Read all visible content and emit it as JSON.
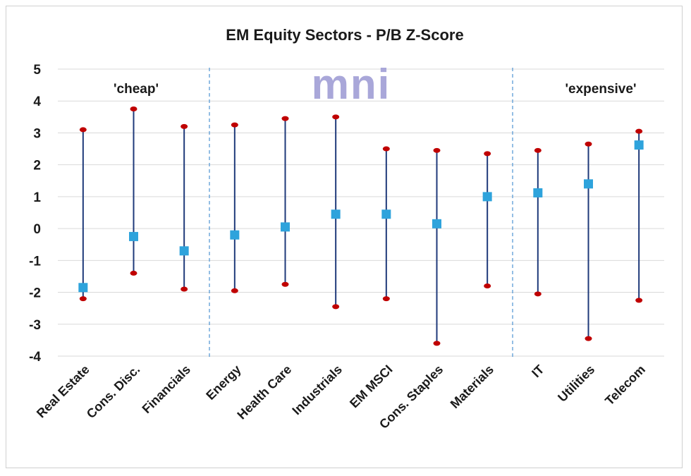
{
  "chart_data": {
    "type": "scatter",
    "title": "EM Equity Sectors - P/B Z-Score",
    "xlabel": "",
    "ylabel": "",
    "ylim": [
      -4,
      5
    ],
    "yticks": [
      "5",
      "4",
      "3",
      "2",
      "1",
      "0",
      "-1",
      "-2",
      "-3",
      "-4"
    ],
    "grid": true,
    "categories": [
      "Real Estate",
      "Cons. Disc.",
      "Financials",
      "Energy",
      "Health Care",
      "Industrials",
      "EM MSCI",
      "Cons. Staples",
      "Materials",
      "IT",
      "Utilities",
      "Telecom"
    ],
    "series": [
      {
        "values": [
          3.1,
          3.75,
          3.2,
          3.25,
          3.45,
          3.5,
          2.5,
          2.45,
          2.35,
          2.45,
          2.65,
          3.05
        ]
      },
      {
        "values": [
          -2.2,
          -1.4,
          -1.9,
          -1.95,
          -1.75,
          -2.45,
          -2.2,
          -3.6,
          -1.8,
          -2.05,
          -3.45,
          -2.25
        ]
      },
      {
        "values": [
          -1.85,
          -0.25,
          -0.7,
          -0.2,
          0.05,
          0.45,
          0.45,
          0.15,
          1.0,
          1.12,
          1.4,
          2.62
        ]
      }
    ],
    "annotations": [
      "'cheap'",
      "'expensive'"
    ],
    "watermark": "mni",
    "colors": {
      "range_line": "#1f3a7a",
      "extreme_marker": "#c00000",
      "current_marker": "#2ea3dc",
      "divider": "#5b9bd5",
      "grid": "#d9d9d9"
    }
  }
}
